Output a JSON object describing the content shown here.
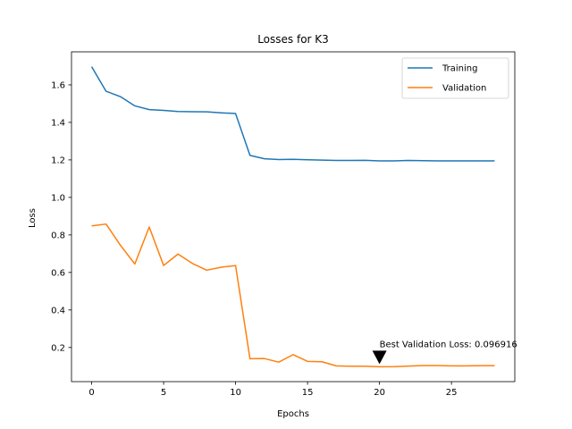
{
  "chart_data": {
    "type": "line",
    "title": "Losses for K3",
    "xlabel": "Epochs",
    "ylabel": "Loss",
    "xlim": [
      -1.4,
      29.4
    ],
    "ylim": [
      0.018,
      1.776
    ],
    "xticks": [
      0,
      5,
      10,
      15,
      20,
      25
    ],
    "yticks": [
      0.2,
      0.4,
      0.6,
      0.8,
      1.0,
      1.2,
      1.4,
      1.6
    ],
    "xtick_labels": [
      "0",
      "5",
      "10",
      "15",
      "20",
      "25"
    ],
    "ytick_labels": [
      "0.2",
      "0.4",
      "0.6",
      "0.8",
      "1.0",
      "1.2",
      "1.4",
      "1.6"
    ],
    "grid": false,
    "legend_position": "top-right",
    "x": [
      0,
      1,
      2,
      3,
      4,
      5,
      6,
      7,
      8,
      9,
      10,
      11,
      12,
      13,
      14,
      15,
      16,
      17,
      18,
      19,
      20,
      21,
      22,
      23,
      24,
      25,
      26,
      27,
      28
    ],
    "series": [
      {
        "name": "Training",
        "color": "#1f77b4",
        "values": [
          1.697,
          1.566,
          1.537,
          1.488,
          1.468,
          1.464,
          1.458,
          1.457,
          1.456,
          1.451,
          1.447,
          1.224,
          1.206,
          1.202,
          1.203,
          1.201,
          1.199,
          1.197,
          1.197,
          1.198,
          1.195,
          1.195,
          1.197,
          1.196,
          1.195,
          1.195,
          1.195,
          1.195,
          1.195
        ]
      },
      {
        "name": "Validation",
        "color": "#ff7f0e",
        "values": [
          0.848,
          0.858,
          0.745,
          0.645,
          0.842,
          0.637,
          0.698,
          0.648,
          0.612,
          0.628,
          0.637,
          0.14,
          0.141,
          0.122,
          0.162,
          0.126,
          0.124,
          0.102,
          0.1,
          0.1,
          0.097,
          0.098,
          0.101,
          0.104,
          0.104,
          0.102,
          0.102,
          0.103,
          0.103
        ]
      }
    ],
    "annotation": {
      "text": "Best Validation Loss: 0.096916",
      "x": 20,
      "y": 0.096916,
      "marker": "down-triangle",
      "marker_color": "#000000"
    }
  }
}
